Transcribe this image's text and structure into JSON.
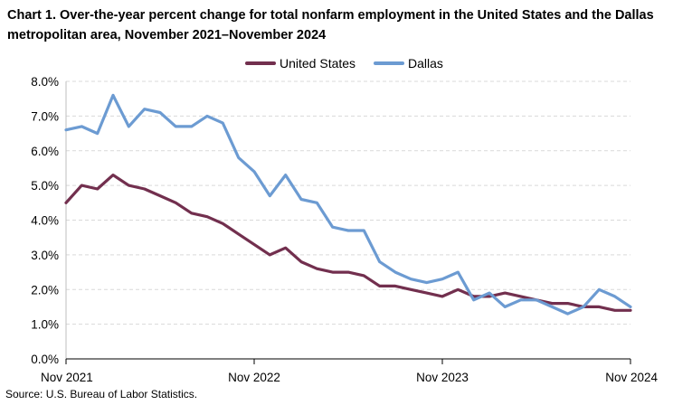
{
  "chart_data": {
    "type": "line",
    "title": "Chart 1. Over-the-year percent change for total nonfarm employment in the United States and the Dallas metropolitan area, November 2021–November 2024",
    "xlabel": "",
    "ylabel": "",
    "ylim": [
      0,
      8
    ],
    "y_ticks": [
      "0.0%",
      "1.0%",
      "2.0%",
      "3.0%",
      "4.0%",
      "5.0%",
      "6.0%",
      "7.0%",
      "8.0%"
    ],
    "x_tick_labels": [
      "Nov 2021",
      "Nov 2022",
      "Nov 2023",
      "Nov 2024"
    ],
    "grid": true,
    "legend_position": "top-center",
    "x": [
      "Nov 2021",
      "Dec 2021",
      "Jan 2022",
      "Feb 2022",
      "Mar 2022",
      "Apr 2022",
      "May 2022",
      "Jun 2022",
      "Jul 2022",
      "Aug 2022",
      "Sep 2022",
      "Oct 2022",
      "Nov 2022",
      "Dec 2022",
      "Jan 2023",
      "Feb 2023",
      "Mar 2023",
      "Apr 2023",
      "May 2023",
      "Jun 2023",
      "Jul 2023",
      "Aug 2023",
      "Sep 2023",
      "Oct 2023",
      "Nov 2023",
      "Dec 2023",
      "Jan 2024",
      "Feb 2024",
      "Mar 2024",
      "Apr 2024",
      "May 2024",
      "Jun 2024",
      "Jul 2024",
      "Aug 2024",
      "Sep 2024",
      "Oct 2024",
      "Nov 2024"
    ],
    "series": [
      {
        "name": "United States",
        "color": "#722F4E",
        "values": [
          4.5,
          5.0,
          4.9,
          5.3,
          5.0,
          4.9,
          4.7,
          4.5,
          4.2,
          4.1,
          3.9,
          3.6,
          3.3,
          3.0,
          3.2,
          2.8,
          2.6,
          2.5,
          2.5,
          2.4,
          2.1,
          2.1,
          2.0,
          1.9,
          1.8,
          2.0,
          1.8,
          1.8,
          1.9,
          1.8,
          1.7,
          1.6,
          1.6,
          1.5,
          1.5,
          1.4,
          1.4
        ]
      },
      {
        "name": "Dallas",
        "color": "#6C9BD2",
        "values": [
          6.6,
          6.7,
          6.5,
          7.6,
          6.7,
          7.2,
          7.1,
          6.7,
          6.7,
          7.0,
          6.8,
          5.8,
          5.4,
          4.7,
          5.3,
          4.6,
          4.5,
          3.8,
          3.7,
          3.7,
          2.8,
          2.5,
          2.3,
          2.2,
          2.3,
          2.5,
          1.7,
          1.9,
          1.5,
          1.7,
          1.7,
          1.5,
          1.3,
          1.5,
          2.0,
          1.8,
          1.5
        ]
      }
    ]
  },
  "source": "Source: U.S. Bureau of Labor Statistics."
}
